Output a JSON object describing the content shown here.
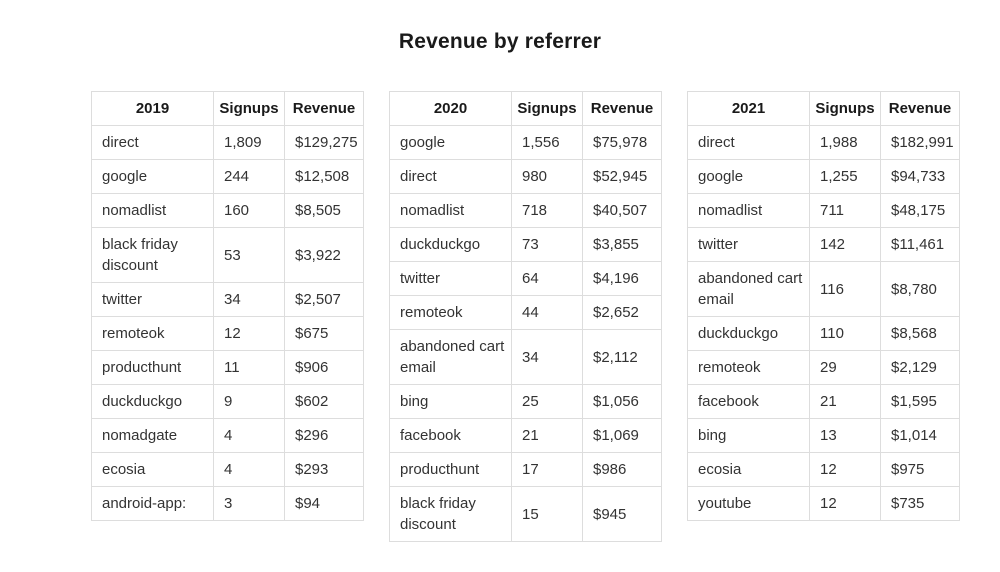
{
  "page": {
    "title": "Revenue by referrer"
  },
  "colors": {
    "background": "#ffffff",
    "border": "#dddddd",
    "text": "#333333",
    "heading": "#1a1a1a"
  },
  "chart_data": [
    {
      "type": "table",
      "title": "2019",
      "columns": [
        "2019",
        "Signups",
        "Revenue"
      ],
      "rows": [
        [
          "direct",
          "1,809",
          "$129,275"
        ],
        [
          "google",
          "244",
          "$12,508"
        ],
        [
          "nomadlist",
          "160",
          "$8,505"
        ],
        [
          "black friday discount",
          "53",
          "$3,922"
        ],
        [
          "twitter",
          "34",
          "$2,507"
        ],
        [
          "remoteok",
          "12",
          "$675"
        ],
        [
          "producthunt",
          "11",
          "$906"
        ],
        [
          "duckduckgo",
          "9",
          "$602"
        ],
        [
          "nomadgate",
          "4",
          "$296"
        ],
        [
          "ecosia",
          "4",
          "$293"
        ],
        [
          "android-app:",
          "3",
          "$94"
        ]
      ]
    },
    {
      "type": "table",
      "title": "2020",
      "columns": [
        "2020",
        "Signups",
        "Revenue"
      ],
      "rows": [
        [
          "google",
          "1,556",
          "$75,978"
        ],
        [
          "direct",
          "980",
          "$52,945"
        ],
        [
          "nomadlist",
          "718",
          "$40,507"
        ],
        [
          "duckduckgo",
          "73",
          "$3,855"
        ],
        [
          "twitter",
          "64",
          "$4,196"
        ],
        [
          "remoteok",
          "44",
          "$2,652"
        ],
        [
          "abandoned cart email",
          "34",
          "$2,112"
        ],
        [
          "bing",
          "25",
          "$1,056"
        ],
        [
          "facebook",
          "21",
          "$1,069"
        ],
        [
          "producthunt",
          "17",
          "$986"
        ],
        [
          "black friday discount",
          "15",
          "$945"
        ]
      ]
    },
    {
      "type": "table",
      "title": "2021",
      "columns": [
        "2021",
        "Signups",
        "Revenue"
      ],
      "rows": [
        [
          "direct",
          "1,988",
          "$182,991"
        ],
        [
          "google",
          "1,255",
          "$94,733"
        ],
        [
          "nomadlist",
          "711",
          "$48,175"
        ],
        [
          "twitter",
          "142",
          "$11,461"
        ],
        [
          "abandoned cart email",
          "116",
          "$8,780"
        ],
        [
          "duckduckgo",
          "110",
          "$8,568"
        ],
        [
          "remoteok",
          "29",
          "$2,129"
        ],
        [
          "facebook",
          "21",
          "$1,595"
        ],
        [
          "bing",
          "13",
          "$1,014"
        ],
        [
          "ecosia",
          "12",
          "$975"
        ],
        [
          "youtube",
          "12",
          "$735"
        ]
      ]
    }
  ]
}
